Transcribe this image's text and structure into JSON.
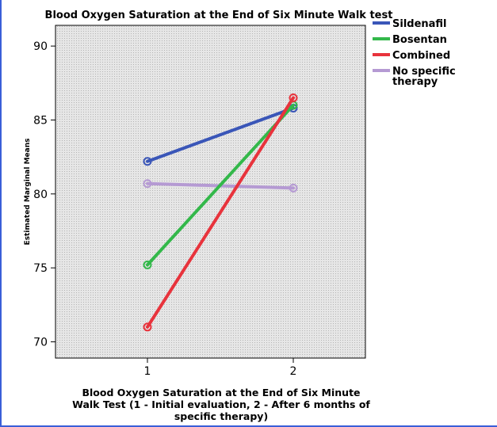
{
  "chart_data": {
    "type": "line",
    "title": "Blood Oxygen Saturation at the End of Six Minute Walk test",
    "ylabel": "Estimated Marginal Means",
    "xlabel_lines": [
      "Blood Oxygen Saturation at the End of Six Minute",
      "Walk Test (1 - Initial evaluation, 2 - After 6 months of",
      "specific therapy)"
    ],
    "x": [
      "1",
      "2"
    ],
    "ylim": [
      68.9,
      91.4
    ],
    "yticks": [
      70,
      75,
      80,
      85,
      90
    ],
    "grid": false,
    "legend_position": "right",
    "series": [
      {
        "name": "Sildenafil",
        "color": "#3a56b8",
        "values": [
          82.2,
          85.8
        ]
      },
      {
        "name": "Bosentan",
        "color": "#33b84a",
        "values": [
          75.2,
          86.0
        ]
      },
      {
        "name": "Combined",
        "color": "#e8333c",
        "values": [
          71.0,
          86.5
        ]
      },
      {
        "name": "No specific therapy",
        "legend_lines": [
          "No specific",
          "therapy"
        ],
        "color": "#b59ad3",
        "values": [
          80.7,
          80.4
        ]
      }
    ]
  }
}
